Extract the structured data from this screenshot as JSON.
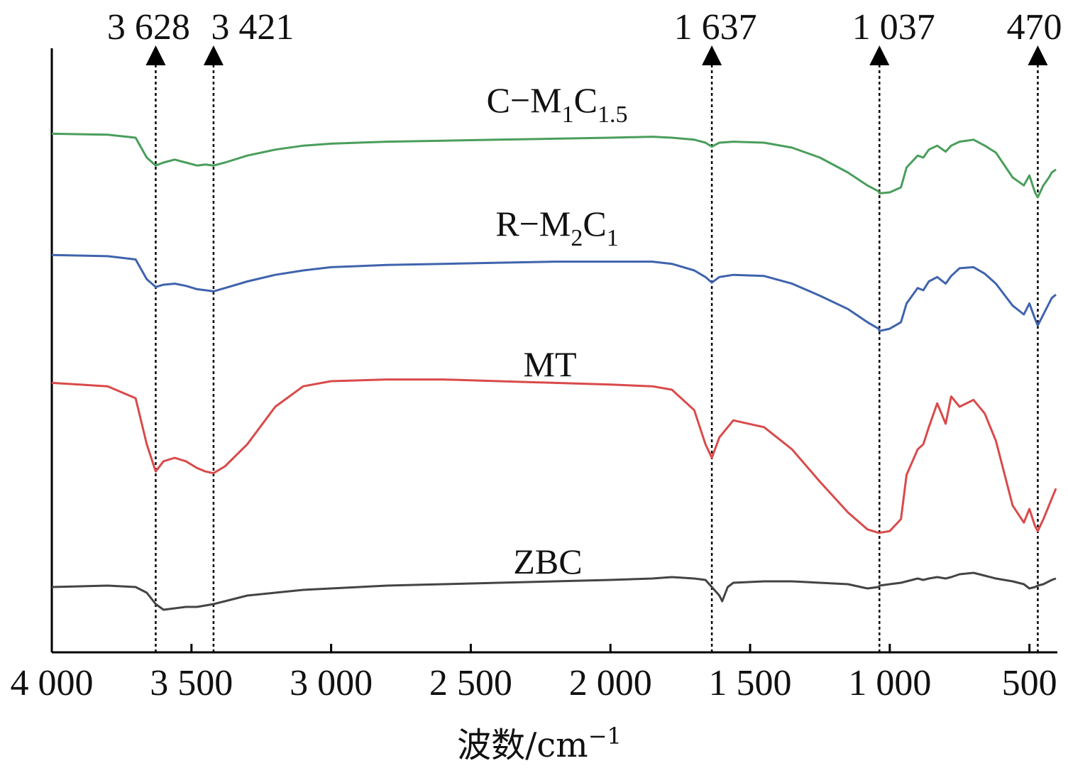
{
  "chart_data": {
    "type": "line",
    "xlabel": "波数/cm",
    "xlabel_sup": "−1",
    "xlim": [
      4000,
      400
    ],
    "x_inverted": true,
    "y_axis": "offset transmittance (no scale)",
    "xticks": [
      4000,
      3500,
      3000,
      2500,
      2000,
      1500,
      1000,
      500
    ],
    "xtick_labels": [
      "4 000",
      "3 500",
      "3 000",
      "2 500",
      "2 000",
      "1 500",
      "1 000",
      "500"
    ],
    "peaks": [
      {
        "x": 3628,
        "label": "3 628"
      },
      {
        "x": 3421,
        "label": "3 421"
      },
      {
        "x": 1637,
        "label": "1 637"
      },
      {
        "x": 1037,
        "label": "1 037"
      },
      {
        "x": 470,
        "label": "470"
      }
    ],
    "series": [
      {
        "name": "C−M1C1.5",
        "label_main": "C−M",
        "label_sub1": "1",
        "label_mid": "C",
        "label_sub2": "1.5",
        "color": "#4a9e5c",
        "x": [
          4000,
          3800,
          3700,
          3660,
          3628,
          3600,
          3560,
          3520,
          3480,
          3450,
          3421,
          3380,
          3300,
          3200,
          3100,
          3000,
          2800,
          2600,
          2400,
          2200,
          2000,
          1850,
          1780,
          1700,
          1660,
          1637,
          1610,
          1560,
          1450,
          1350,
          1250,
          1150,
          1080,
          1040,
          1037,
          1000,
          960,
          940,
          900,
          880,
          860,
          830,
          800,
          780,
          750,
          700,
          660,
          620,
          560,
          520,
          500,
          480,
          470,
          450,
          430,
          420,
          405
        ],
        "y": [
          94,
          93,
          90,
          70,
          62,
          65,
          68,
          65,
          62,
          63,
          62,
          65,
          72,
          78,
          82,
          84,
          86,
          87,
          88,
          89,
          90,
          91,
          90,
          88,
          85,
          81,
          85,
          86,
          85,
          80,
          70,
          55,
          42,
          36,
          34,
          35,
          40,
          60,
          72,
          70,
          78,
          82,
          76,
          82,
          86,
          88,
          82,
          75,
          50,
          42,
          52,
          35,
          30,
          42,
          50,
          55,
          58
        ]
      },
      {
        "name": "R−M2C1",
        "label_main": "R−M",
        "label_sub1": "2",
        "label_mid": "C",
        "label_sub2": "1",
        "color": "#3f63ad",
        "x": [
          4000,
          3800,
          3700,
          3660,
          3628,
          3600,
          3560,
          3520,
          3480,
          3450,
          3421,
          3380,
          3300,
          3200,
          3100,
          3000,
          2800,
          2600,
          2400,
          2200,
          2000,
          1850,
          1780,
          1700,
          1660,
          1637,
          1610,
          1560,
          1450,
          1350,
          1250,
          1150,
          1080,
          1040,
          1037,
          1000,
          960,
          940,
          900,
          880,
          860,
          830,
          800,
          780,
          750,
          700,
          660,
          620,
          560,
          520,
          500,
          480,
          470,
          450,
          430,
          420,
          405
        ],
        "y": [
          94,
          93,
          90,
          72,
          65,
          67,
          68,
          66,
          63,
          62,
          61,
          64,
          70,
          76,
          80,
          83,
          85,
          86,
          87,
          88,
          88,
          88,
          86,
          80,
          74,
          69,
          74,
          76,
          75,
          68,
          57,
          45,
          33,
          27,
          25,
          27,
          33,
          50,
          64,
          62,
          70,
          74,
          68,
          75,
          82,
          83,
          77,
          68,
          48,
          40,
          50,
          36,
          30,
          40,
          50,
          55,
          58
        ]
      },
      {
        "name": "MT",
        "label_main": "MT",
        "label_sub1": "",
        "label_mid": "",
        "label_sub2": "",
        "color": "#d94a4a",
        "x": [
          4000,
          3800,
          3700,
          3660,
          3628,
          3600,
          3560,
          3520,
          3480,
          3450,
          3421,
          3380,
          3300,
          3200,
          3100,
          3000,
          2800,
          2600,
          2400,
          2200,
          2000,
          1850,
          1780,
          1700,
          1660,
          1637,
          1610,
          1560,
          1450,
          1350,
          1250,
          1150,
          1080,
          1040,
          1037,
          1000,
          960,
          940,
          900,
          880,
          860,
          830,
          800,
          780,
          750,
          700,
          660,
          620,
          560,
          520,
          500,
          480,
          470,
          450,
          430,
          420,
          405
        ],
        "y": [
          94,
          92,
          85,
          58,
          42,
          48,
          50,
          48,
          44,
          42,
          41,
          45,
          58,
          80,
          92,
          95,
          96,
          96,
          95,
          94,
          93,
          92,
          90,
          78,
          58,
          50,
          62,
          72,
          68,
          55,
          36,
          18,
          8,
          6,
          6,
          7,
          14,
          40,
          55,
          58,
          68,
          82,
          70,
          86,
          80,
          84,
          76,
          60,
          22,
          12,
          20,
          10,
          7,
          14,
          22,
          26,
          32
        ]
      },
      {
        "name": "ZBC",
        "label_main": "ZBC",
        "label_sub1": "",
        "label_mid": "",
        "label_sub2": "",
        "color": "#444444",
        "x": [
          4000,
          3800,
          3700,
          3660,
          3628,
          3600,
          3560,
          3520,
          3480,
          3450,
          3421,
          3380,
          3300,
          3200,
          3100,
          3000,
          2800,
          2600,
          2400,
          2200,
          2000,
          1850,
          1780,
          1700,
          1660,
          1637,
          1610,
          1600,
          1580,
          1560,
          1450,
          1350,
          1250,
          1150,
          1080,
          1040,
          1037,
          1000,
          960,
          940,
          900,
          880,
          860,
          830,
          800,
          780,
          750,
          700,
          660,
          620,
          560,
          520,
          500,
          480,
          470,
          450,
          430,
          420,
          405
        ],
        "y": [
          94,
          95,
          94,
          90,
          82,
          78,
          79,
          80,
          80,
          81,
          82,
          84,
          88,
          90,
          92,
          93,
          95,
          96,
          97,
          98,
          99,
          100,
          101,
          100,
          99,
          94,
          88,
          84,
          94,
          97,
          98,
          98,
          97,
          96,
          93,
          94,
          95,
          96,
          97,
          98,
          100,
          99,
          100,
          101,
          100,
          101,
          103,
          104,
          102,
          100,
          98,
          96,
          93,
          94,
          95,
          96,
          98,
          99,
          100
        ]
      }
    ]
  }
}
